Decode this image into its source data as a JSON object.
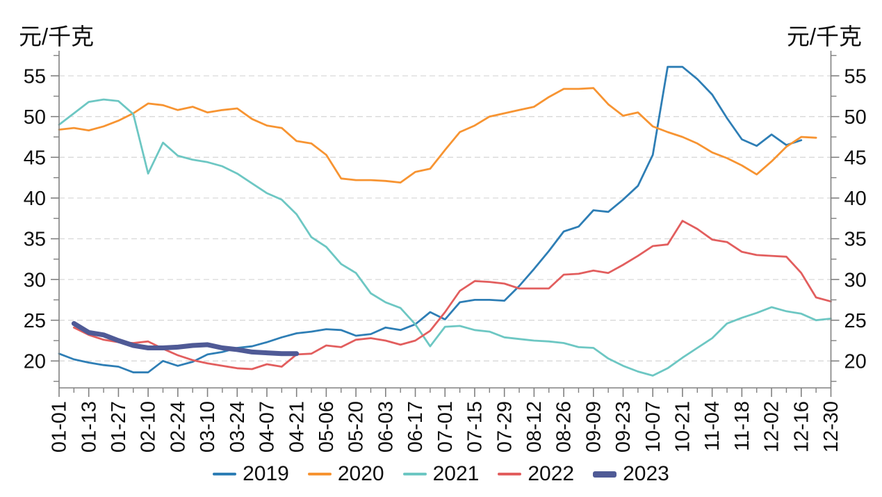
{
  "chart_data": {
    "type": "line",
    "title": "",
    "unit_label": "元/千克",
    "xlabel": "",
    "ylabel_left": "元/千克",
    "ylabel_right": "元/千克",
    "x_tick_labels": [
      "01-01",
      "01-13",
      "01-27",
      "02-10",
      "02-24",
      "03-10",
      "03-24",
      "04-07",
      "04-21",
      "05-06",
      "05-20",
      "06-03",
      "06-17",
      "07-01",
      "07-15",
      "07-29",
      "08-12",
      "08-26",
      "09-09",
      "09-23",
      "10-07",
      "10-21",
      "11-04",
      "11-18",
      "12-02",
      "12-16",
      "12-30"
    ],
    "x_resolution": "weekly, labels every 2 weeks",
    "yticks_major": [
      20,
      25,
      30,
      35,
      40,
      45,
      50,
      55
    ],
    "yticks_minor": [
      17.5,
      22.5,
      27.5,
      32.5,
      37.5,
      42.5,
      47.5,
      52.5,
      57.5
    ],
    "ylim": [
      16.6,
      58.4
    ],
    "grid": "horizontal-dashed",
    "legend_position": "bottom-center",
    "axis_color": "#808080",
    "grid_color": "#d9d9d9",
    "text_color": "#0f0f0f",
    "series": [
      {
        "name": "2019",
        "color": "#2E7EB5",
        "line_width": 2.8,
        "start_week": 0,
        "values": [
          20.9,
          20.2,
          19.8,
          19.5,
          19.3,
          18.6,
          18.6,
          20.0,
          19.4,
          19.9,
          20.8,
          21.1,
          21.6,
          21.8,
          22.3,
          22.9,
          23.4,
          23.6,
          23.9,
          23.8,
          23.1,
          23.3,
          24.1,
          23.8,
          24.5,
          26.0,
          25.1,
          27.2,
          27.5,
          27.5,
          27.4,
          29.2,
          31.3,
          33.5,
          35.9,
          36.5,
          38.5,
          38.3,
          39.8,
          41.5,
          45.3,
          56.1,
          56.1,
          54.6,
          52.7,
          49.8,
          47.2,
          46.4,
          47.8,
          46.5,
          47.1
        ]
      },
      {
        "name": "2020",
        "color": "#F79432",
        "line_width": 2.8,
        "start_week": 0,
        "values": [
          48.4,
          48.6,
          48.3,
          48.8,
          49.5,
          50.4,
          51.6,
          51.4,
          50.8,
          51.2,
          50.5,
          50.8,
          51.0,
          49.7,
          48.9,
          48.6,
          47.0,
          46.7,
          45.3,
          42.4,
          42.2,
          42.2,
          42.1,
          41.9,
          43.2,
          43.6,
          45.9,
          48.1,
          48.9,
          50.0,
          50.4,
          50.8,
          51.2,
          52.4,
          53.4,
          53.4,
          53.5,
          51.5,
          50.1,
          50.5,
          48.8,
          48.1,
          47.5,
          46.7,
          45.6,
          44.9,
          44.0,
          42.9,
          44.5,
          46.3,
          47.5,
          47.4
        ]
      },
      {
        "name": "2021",
        "color": "#6DC7C3",
        "line_width": 2.8,
        "start_week": 0,
        "values": [
          49.0,
          50.4,
          51.8,
          52.1,
          51.9,
          50.3,
          43.0,
          46.8,
          45.2,
          44.7,
          44.4,
          43.9,
          43.0,
          41.8,
          40.6,
          39.8,
          38.0,
          35.2,
          34.0,
          31.9,
          30.8,
          28.3,
          27.2,
          26.5,
          24.5,
          21.8,
          24.2,
          24.3,
          23.8,
          23.6,
          22.9,
          22.7,
          22.5,
          22.4,
          22.2,
          21.7,
          21.6,
          20.3,
          19.4,
          18.7,
          18.2,
          19.1,
          20.4,
          21.6,
          22.8,
          24.6,
          25.3,
          25.9,
          26.6,
          26.1,
          25.8,
          25.0,
          25.2
        ]
      },
      {
        "name": "2022",
        "color": "#E25E5E",
        "line_width": 2.8,
        "start_week": 1,
        "values": [
          24.1,
          23.2,
          22.6,
          22.3,
          22.2,
          22.4,
          21.5,
          20.7,
          20.1,
          19.7,
          19.4,
          19.1,
          19.0,
          19.6,
          19.3,
          20.8,
          20.9,
          21.9,
          21.7,
          22.6,
          22.8,
          22.5,
          22.0,
          22.5,
          23.7,
          26.0,
          28.6,
          29.8,
          29.7,
          29.5,
          28.9,
          28.9,
          28.9,
          30.6,
          30.7,
          31.1,
          30.8,
          31.8,
          32.9,
          34.1,
          34.3,
          37.2,
          36.2,
          34.9,
          34.6,
          33.4,
          33.0,
          32.9,
          32.8,
          30.8,
          27.8,
          27.3
        ]
      },
      {
        "name": "2023",
        "color": "#4F5A96",
        "line_width": 7,
        "start_week": 1,
        "values": [
          24.6,
          23.5,
          23.2,
          22.5,
          21.9,
          21.6,
          21.6,
          21.7,
          21.9,
          22.0,
          21.6,
          21.4,
          21.1,
          21.0,
          20.9,
          20.9
        ]
      }
    ]
  }
}
